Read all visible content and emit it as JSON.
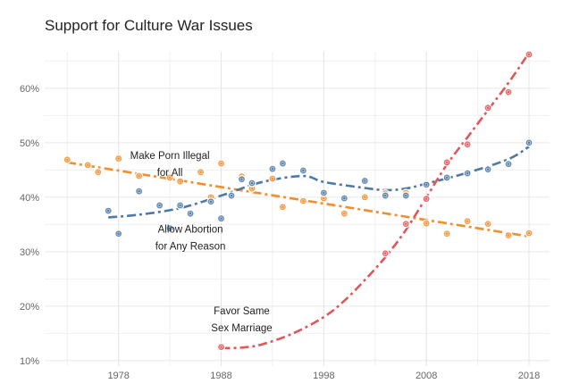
{
  "chart_data": {
    "type": "scatter",
    "title": "Support for Culture War Issues",
    "xlabel": "",
    "ylabel": "",
    "xlim": [
      1970.8,
      2020
    ],
    "ylim": [
      9,
      66.7
    ],
    "grid": true,
    "x_ticks": [
      1978,
      1988,
      1998,
      2008,
      2018
    ],
    "x_tick_labels": [
      "1978",
      "1988",
      "1998",
      "2008",
      "2018"
    ],
    "y_ticks": [
      10,
      20,
      30,
      40,
      50,
      60
    ],
    "y_tick_labels": [
      "10%",
      "20%",
      "30%",
      "40%",
      "50%",
      "60%"
    ],
    "series": [
      {
        "name": "Make Porn Illegal for All",
        "label_lines": [
          "Make Porn Illegal",
          "for All"
        ],
        "label_at": [
          1983,
          47
        ],
        "color": "#F28E2B",
        "points": [
          [
            1973,
            46.9
          ],
          [
            1975,
            45.9
          ],
          [
            1976,
            44.6
          ],
          [
            1978,
            47.1
          ],
          [
            1980,
            43.9
          ],
          [
            1983,
            43.6
          ],
          [
            1984,
            42.9
          ],
          [
            1986,
            44.6
          ],
          [
            1987,
            40.0
          ],
          [
            1988,
            46.2
          ],
          [
            1990,
            43.8
          ],
          [
            1991,
            41.6
          ],
          [
            1993,
            43.4
          ],
          [
            1994,
            38.2
          ],
          [
            1996,
            39.3
          ],
          [
            1998,
            39.8
          ],
          [
            2000,
            37.0
          ],
          [
            2002,
            40.0
          ],
          [
            2004,
            40.7
          ],
          [
            2006,
            40.8
          ],
          [
            2008,
            35.2
          ],
          [
            2010,
            33.3
          ],
          [
            2012,
            35.6
          ],
          [
            2014,
            35.1
          ],
          [
            2016,
            33.0
          ],
          [
            2018,
            33.4
          ]
        ],
        "trend": [
          [
            1973,
            46.4
          ],
          [
            2018,
            32.8
          ]
        ]
      },
      {
        "name": "Allow Abortion for Any Reason",
        "label_lines": [
          "Allow Abortion",
          "for Any Reason"
        ],
        "label_at": [
          1985,
          33.5
        ],
        "color": "#4E79A7",
        "points": [
          [
            1977,
            37.5
          ],
          [
            1978,
            33.3
          ],
          [
            1980,
            41.1
          ],
          [
            1982,
            38.5
          ],
          [
            1983,
            34.3
          ],
          [
            1984,
            38.5
          ],
          [
            1985,
            37.0
          ],
          [
            1987,
            39.2
          ],
          [
            1988,
            36.1
          ],
          [
            1989,
            40.3
          ],
          [
            1990,
            43.3
          ],
          [
            1991,
            42.6
          ],
          [
            1993,
            45.2
          ],
          [
            1994,
            46.2
          ],
          [
            1996,
            44.9
          ],
          [
            1998,
            40.8
          ],
          [
            2000,
            39.8
          ],
          [
            2002,
            43.0
          ],
          [
            2004,
            40.3
          ],
          [
            2006,
            40.3
          ],
          [
            2008,
            42.3
          ],
          [
            2010,
            43.6
          ],
          [
            2012,
            44.4
          ],
          [
            2014,
            45.1
          ],
          [
            2016,
            46.1
          ],
          [
            2018,
            50.0
          ]
        ],
        "trend": [
          [
            1977,
            36.3
          ],
          [
            1980,
            36.8
          ],
          [
            1984,
            38.0
          ],
          [
            1988,
            40.3
          ],
          [
            1992,
            42.8
          ],
          [
            1996,
            43.9
          ],
          [
            1998,
            42.8
          ],
          [
            2002,
            41.7
          ],
          [
            2004,
            41.3
          ],
          [
            2006,
            41.6
          ],
          [
            2008,
            42.5
          ],
          [
            2012,
            44.5
          ],
          [
            2016,
            47.0
          ],
          [
            2018,
            49.3
          ]
        ]
      },
      {
        "name": "Favor Same Sex Marriage",
        "label_lines": [
          "Favor Same",
          "Sex Marriage"
        ],
        "label_at": [
          1990,
          18.5
        ],
        "color": "#E15759",
        "points": [
          [
            1988,
            12.5
          ],
          [
            2004,
            29.7
          ],
          [
            2006,
            35.1
          ],
          [
            2008,
            39.7
          ],
          [
            2010,
            46.4
          ],
          [
            2012,
            49.7
          ],
          [
            2014,
            56.4
          ],
          [
            2016,
            59.3
          ],
          [
            2018,
            66.2
          ]
        ],
        "trend": [
          [
            1988,
            12.3
          ],
          [
            1990,
            12.4
          ],
          [
            1992,
            13.0
          ],
          [
            1995,
            15.0
          ],
          [
            1998,
            18.0
          ],
          [
            2000,
            21.0
          ],
          [
            2002,
            24.8
          ],
          [
            2004,
            29.0
          ],
          [
            2006,
            34.0
          ],
          [
            2008,
            40.0
          ],
          [
            2010,
            46.0
          ],
          [
            2012,
            51.0
          ],
          [
            2014,
            56.0
          ],
          [
            2016,
            61.0
          ],
          [
            2018,
            66.5
          ]
        ]
      }
    ]
  }
}
